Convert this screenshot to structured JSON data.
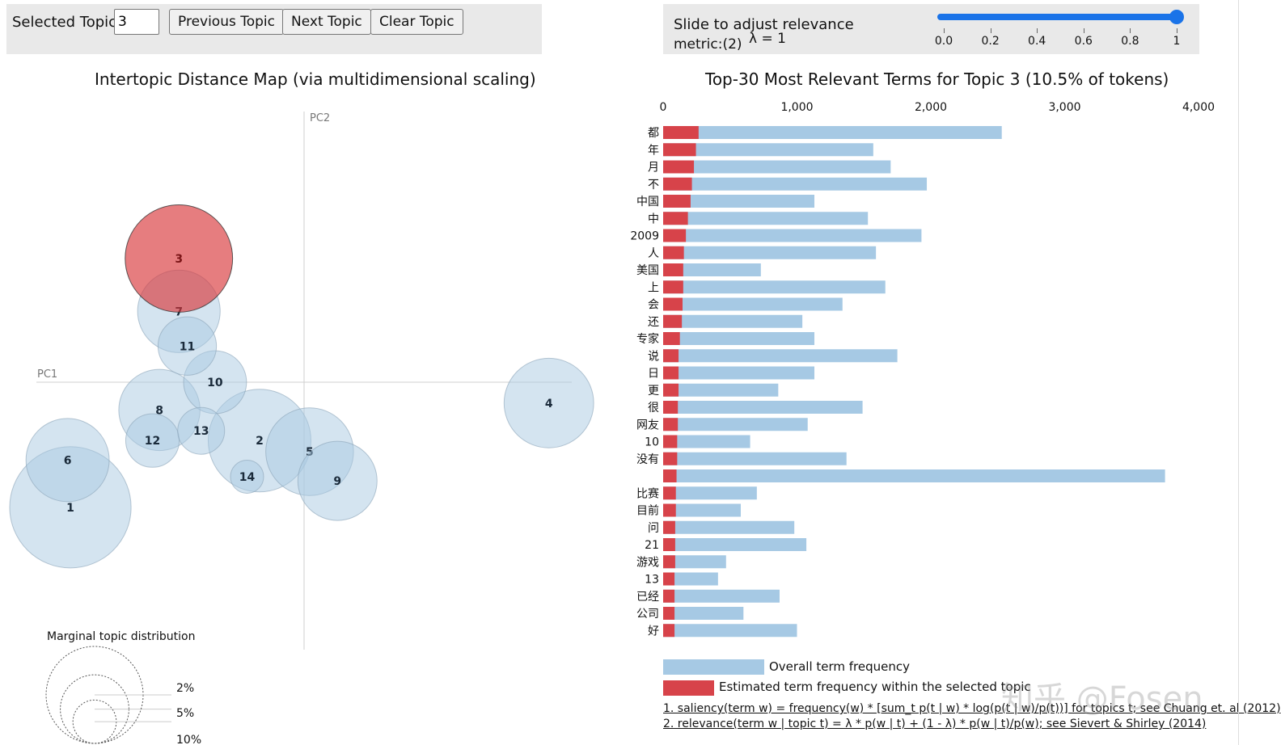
{
  "controls": {
    "selected_topic_label": "Selected Topic:",
    "selected_topic_value": "3",
    "prev_label": "Previous Topic",
    "next_label": "Next Topic",
    "clear_label": "Clear Topic"
  },
  "slider": {
    "label_line1": "Slide to adjust relevance",
    "label_line2": "metric:(2)",
    "lambda_text": "λ = 1",
    "value": 1,
    "ticks": [
      "0.0",
      "0.2",
      "0.4",
      "0.6",
      "0.8",
      "1"
    ]
  },
  "colors": {
    "bubble_fill": "#a9c9e2",
    "bubble_selected": "#d9383a",
    "bar_overall": "#a6c9e4",
    "bar_topic": "#d7434a",
    "slider": "#1a73e8"
  },
  "chart_data": [
    {
      "type": "scatter",
      "title": "Intertopic Distance Map (via multidimensional scaling)",
      "xlabel": "PC1",
      "ylabel": "PC2",
      "selected": 3,
      "topics": [
        {
          "id": 1,
          "pc1": -0.168,
          "pc2": -0.09
        },
        {
          "id": 2,
          "pc1": -0.032,
          "pc2": -0.042
        },
        {
          "id": 3,
          "pc1": -0.09,
          "pc2": 0.089
        },
        {
          "id": 4,
          "pc1": 0.176,
          "pc2": -0.015
        },
        {
          "id": 5,
          "pc1": 0.004,
          "pc2": -0.05
        },
        {
          "id": 6,
          "pc1": -0.17,
          "pc2": -0.056
        },
        {
          "id": 7,
          "pc1": -0.09,
          "pc2": 0.051
        },
        {
          "id": 8,
          "pc1": -0.104,
          "pc2": -0.02
        },
        {
          "id": 9,
          "pc1": 0.024,
          "pc2": -0.071
        },
        {
          "id": 10,
          "pc1": -0.064,
          "pc2": 0.0
        },
        {
          "id": 11,
          "pc1": -0.084,
          "pc2": 0.026
        },
        {
          "id": 12,
          "pc1": -0.109,
          "pc2": -0.042
        },
        {
          "id": 13,
          "pc1": -0.074,
          "pc2": -0.035
        },
        {
          "id": 14,
          "pc1": -0.041,
          "pc2": -0.068
        }
      ],
      "topic_sizes_pct": {
        "1": 13.4,
        "2": 9.6,
        "3": 10.5,
        "4": 7.3,
        "5": 7.0,
        "6": 6.3,
        "7": 6.2,
        "8": 6.0,
        "9": 5.7,
        "10": 3.6,
        "11": 3.1,
        "12": 2.6,
        "13": 2.0,
        "14": 1.0
      },
      "marginal": {
        "title": "Marginal topic distribution",
        "labels": [
          "2%",
          "5%",
          "10%"
        ],
        "values_pct": [
          2,
          5,
          10
        ]
      }
    },
    {
      "type": "bar",
      "orientation": "horizontal",
      "title": "Top-30 Most Relevant Terms for Topic 3 (10.5% of tokens)",
      "xlim": [
        0,
        4000
      ],
      "xticks": [
        "0",
        "1,000",
        "2,000",
        "3,000",
        "4,000"
      ],
      "categories": [
        "都",
        "年",
        "月",
        "不",
        "中国",
        "中",
        "2009",
        "人",
        "美国",
        "上",
        "会",
        "还",
        "专家",
        "说",
        "日",
        "更",
        "很",
        "网友",
        "10",
        "没有",
        "",
        "比赛",
        "目前",
        "问",
        "21",
        "游戏",
        "13",
        "已经",
        "公司",
        "好"
      ],
      "series": [
        {
          "name": "Overall term frequency",
          "values": [
            2530,
            1570,
            1700,
            1970,
            1130,
            1530,
            1930,
            1590,
            730,
            1660,
            1340,
            1040,
            1130,
            1750,
            1130,
            860,
            1490,
            1080,
            650,
            1370,
            3750,
            700,
            580,
            980,
            1070,
            470,
            410,
            870,
            600,
            1000
          ]
        },
        {
          "name": "Estimated term frequency within the selected topic",
          "values": [
            265,
            245,
            230,
            215,
            205,
            185,
            170,
            155,
            150,
            150,
            145,
            140,
            125,
            115,
            115,
            115,
            110,
            110,
            105,
            105,
            100,
            95,
            95,
            90,
            90,
            90,
            85,
            85,
            85,
            85
          ]
        }
      ]
    }
  ],
  "legend": {
    "overall": "Overall term frequency",
    "topic": "Estimated term frequency within the selected topic"
  },
  "references": {
    "saliency": "1. saliency(term w) = frequency(w) * [sum_t p(t | w) * log(p(t | w)/p(t))] for topics t; see Chuang et. al (2012)",
    "relevance": "2. relevance(term w | topic t) = λ * p(w | t) + (1 - λ) * p(w | t)/p(w); see Sievert & Shirley (2014)"
  },
  "watermark": "知乎 @Fosen"
}
